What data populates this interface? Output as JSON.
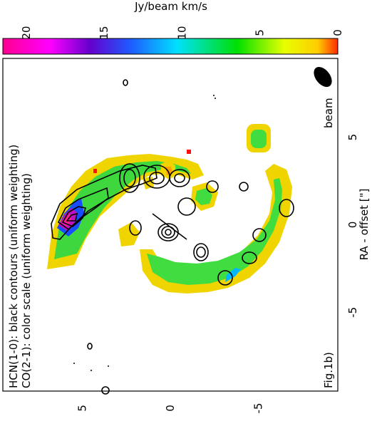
{
  "chart_data": {
    "type": "heatmap",
    "orientation": "rotated-90-ccw",
    "colorbar": {
      "label": "Jy/beam km/s",
      "ticks": [
        0,
        5,
        10,
        15,
        20
      ],
      "range": [
        0,
        21.5
      ],
      "colors": [
        "#ff2a00",
        "#ffcc00",
        "#e8ff00",
        "#00e000",
        "#00e0ff",
        "#1e5aff",
        "#6600cc",
        "#ff00ff",
        "#ff0090"
      ]
    },
    "xaxis": {
      "label": "RA - offset [\"]",
      "ticks": [
        5,
        0,
        -5
      ],
      "range": [
        9.5,
        -9.5
      ]
    },
    "yaxis": {
      "ticks": [
        5,
        0,
        -5
      ],
      "range": [
        -9.5,
        9.5
      ]
    },
    "annotations": {
      "line1": "HCN(1-0): black contours (uniform weighting)",
      "line2": "CO(2-1): color scale (uniform weighting)",
      "fig_label": "Fig.1b)",
      "beam_label": "beam"
    },
    "grid": false
  }
}
